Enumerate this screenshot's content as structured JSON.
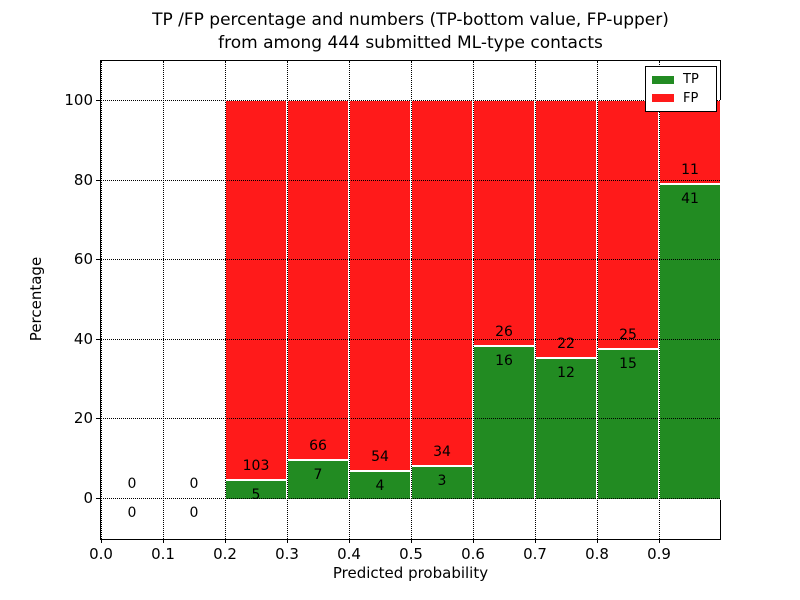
{
  "chart_data": {
    "type": "bar",
    "stacked": true,
    "title_lines": [
      "TP /FP percentage and numbers (TP-bottom value, FP-upper)",
      "from among 444 submitted ML-type contacts"
    ],
    "xlabel": "Predicted probability",
    "ylabel": "Percentage",
    "x_tick_labels": [
      "0.0",
      "0.1",
      "0.2",
      "0.3",
      "0.4",
      "0.5",
      "0.6",
      "0.7",
      "0.8",
      "0.9"
    ],
    "y_ticks": [
      0,
      20,
      40,
      60,
      80,
      100
    ],
    "xlim": [
      0.0,
      1.0
    ],
    "ylim_approx": [
      -11,
      110
    ],
    "grid": "dotted, both axes, drawn over bars",
    "total_contacts": 444,
    "colors": {
      "tp": "#228B22",
      "fp": "#FF1A1A",
      "bar_edge": "#FFFFFF"
    },
    "legend": {
      "position": "upper right",
      "entries": [
        {
          "label": "TP",
          "color": "#228B22"
        },
        {
          "label": "FP",
          "color": "#FF1A1A"
        }
      ]
    },
    "annotation_rule": "FP count above green top, TP count below green top; empty bins show 0 / 0 at baseline",
    "bins": [
      {
        "x_range": [
          0.0,
          0.1
        ],
        "tp_count": 0,
        "fp_count": 0,
        "tp_pct": 0,
        "fp_pct": 0
      },
      {
        "x_range": [
          0.1,
          0.2
        ],
        "tp_count": 0,
        "fp_count": 0,
        "tp_pct": 0,
        "fp_pct": 0
      },
      {
        "x_range": [
          0.2,
          0.3
        ],
        "tp_count": 5,
        "fp_count": 103,
        "tp_pct": 4.63,
        "fp_pct": 95.37
      },
      {
        "x_range": [
          0.3,
          0.4
        ],
        "tp_count": 7,
        "fp_count": 66,
        "tp_pct": 9.59,
        "fp_pct": 90.41
      },
      {
        "x_range": [
          0.4,
          0.5
        ],
        "tp_count": 4,
        "fp_count": 54,
        "tp_pct": 6.9,
        "fp_pct": 93.1
      },
      {
        "x_range": [
          0.5,
          0.6
        ],
        "tp_count": 3,
        "fp_count": 34,
        "tp_pct": 8.11,
        "fp_pct": 91.89
      },
      {
        "x_range": [
          0.6,
          0.7
        ],
        "tp_count": 16,
        "fp_count": 26,
        "tp_pct": 38.1,
        "fp_pct": 61.9
      },
      {
        "x_range": [
          0.7,
          0.8
        ],
        "tp_count": 12,
        "fp_count": 22,
        "tp_pct": 35.29,
        "fp_pct": 64.71
      },
      {
        "x_range": [
          0.8,
          0.9
        ],
        "tp_count": 15,
        "fp_count": 25,
        "tp_pct": 37.5,
        "fp_pct": 62.5
      },
      {
        "x_range": [
          0.9,
          1.0
        ],
        "tp_count": 41,
        "fp_count": 11,
        "tp_pct": 78.85,
        "fp_pct": 21.15
      }
    ]
  }
}
